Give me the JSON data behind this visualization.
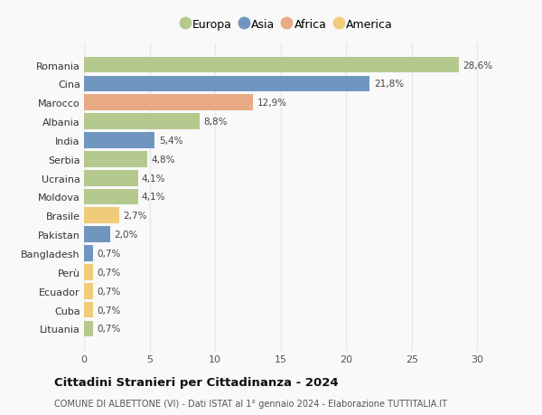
{
  "categories": [
    "Romania",
    "Cina",
    "Marocco",
    "Albania",
    "India",
    "Serbia",
    "Ucraina",
    "Moldova",
    "Brasile",
    "Pakistan",
    "Bangladesh",
    "Perù",
    "Ecuador",
    "Cuba",
    "Lituania"
  ],
  "values": [
    28.6,
    21.8,
    12.9,
    8.8,
    5.4,
    4.8,
    4.1,
    4.1,
    2.7,
    2.0,
    0.7,
    0.7,
    0.7,
    0.7,
    0.7
  ],
  "labels": [
    "28,6%",
    "21,8%",
    "12,9%",
    "8,8%",
    "5,4%",
    "4,8%",
    "4,1%",
    "4,1%",
    "2,7%",
    "2,0%",
    "0,7%",
    "0,7%",
    "0,7%",
    "0,7%",
    "0,7%"
  ],
  "continents": [
    "Europa",
    "Asia",
    "Africa",
    "Europa",
    "Asia",
    "Europa",
    "Europa",
    "Europa",
    "America",
    "Asia",
    "Asia",
    "America",
    "America",
    "America",
    "Europa"
  ],
  "colors": {
    "Europa": "#b5c98e",
    "Asia": "#7096c0",
    "Africa": "#e8aa85",
    "America": "#f0cc7a"
  },
  "legend_order": [
    "Europa",
    "Asia",
    "Africa",
    "America"
  ],
  "title": "Cittadini Stranieri per Cittadinanza - 2024",
  "subtitle": "COMUNE DI ALBETTONE (VI) - Dati ISTAT al 1° gennaio 2024 - Elaborazione TUTTITALIA.IT",
  "xlim": [
    0,
    31
  ],
  "xticks": [
    0,
    5,
    10,
    15,
    20,
    25,
    30
  ],
  "background_color": "#f9f9f9",
  "grid_color": "#e8e8e8",
  "bar_height": 0.85
}
